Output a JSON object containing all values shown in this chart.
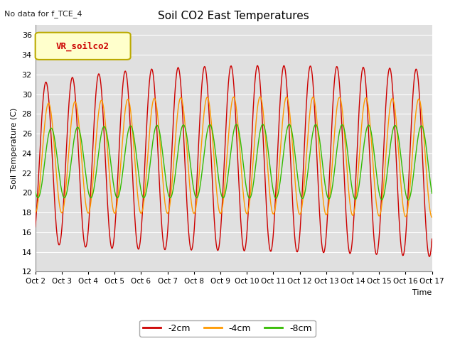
{
  "title": "Soil CO2 East Temperatures",
  "top_left_note": "No data for f_TCE_4",
  "legend_box_label": "VR_soilco2",
  "ylabel": "Soil Temperature (C)",
  "xlabel": "Time",
  "ylim": [
    12,
    37
  ],
  "yticks": [
    12,
    14,
    16,
    18,
    20,
    22,
    24,
    26,
    28,
    30,
    32,
    34,
    36
  ],
  "x_labels": [
    "Oct 2",
    "Oct 3",
    "Oct 4",
    "Oct 5",
    "Oct 6",
    "Oct 7",
    "Oct 8",
    "Oct 9",
    "Oct 10",
    "Oct 11",
    "Oct 12",
    "Oct 13",
    "Oct 14",
    "Oct 15",
    "Oct 16",
    "Oct 17"
  ],
  "colors": {
    "2cm": "#cc0000",
    "4cm": "#ff9900",
    "8cm": "#33bb00"
  },
  "legend_entries": [
    "-2cm",
    "-4cm",
    "-8cm"
  ],
  "bg_color": "#e0e0e0",
  "grid_color": "#ffffff",
  "note_color": "#222222",
  "legend_box_bg": "#ffffcc",
  "legend_box_edge": "#bbaa00",
  "figsize": [
    6.4,
    4.8
  ],
  "dpi": 100
}
